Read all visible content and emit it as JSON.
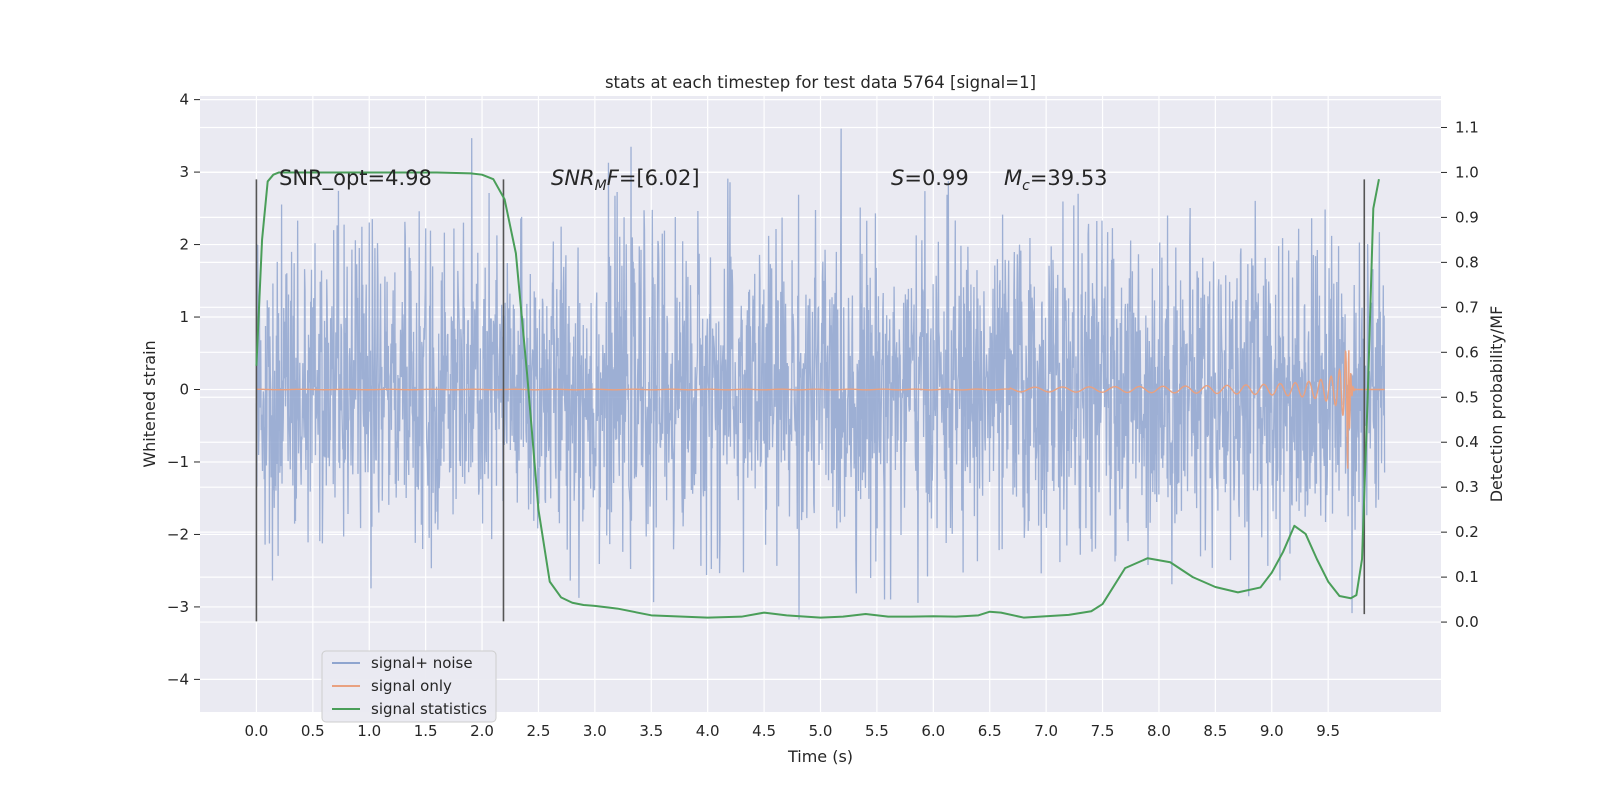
{
  "chart_data": {
    "type": "line",
    "title": "stats at each timestep for test data 5764 [signal=1]",
    "xlabel": "Time (s)",
    "ylabel": "Whitened strain",
    "y2label": "Detection probability/MF",
    "xlim": [
      -0.5,
      10.5
    ],
    "ylim": [
      -4.45,
      4.05
    ],
    "y2lim": [
      -0.2,
      1.17
    ],
    "x_ticks": [
      "0.0",
      "0.5",
      "1.0",
      "1.5",
      "2.0",
      "2.5",
      "3.0",
      "3.5",
      "4.0",
      "4.5",
      "5.0",
      "5.5",
      "6.0",
      "6.5",
      "7.0",
      "7.5",
      "8.0",
      "8.5",
      "9.0",
      "9.5"
    ],
    "y_ticks": [
      "−4",
      "−3",
      "−2",
      "−1",
      "0",
      "1",
      "2",
      "3",
      "4"
    ],
    "y2_ticks": [
      "0.0",
      "0.1",
      "0.2",
      "0.3",
      "0.4",
      "0.5",
      "0.6",
      "0.7",
      "0.8",
      "0.9",
      "1.0",
      "1.1"
    ],
    "grid": true,
    "legend_position": "lower-left",
    "annotations": {
      "snr_opt": "SNR_opt=4.98",
      "snr_mf_main": "SNR",
      "snr_mf_sub": "M",
      "snr_mf_rest": "F=[6.02]",
      "s_italic": "S",
      "s_rest": "=0.99",
      "mc_main": "M",
      "mc_sub": "c",
      "mc_rest": "=39.53"
    },
    "vlines": [
      {
        "x": 0.0,
        "y": [
          -3.2,
          2.9
        ]
      },
      {
        "x": 2.19,
        "y": [
          -3.2,
          2.9
        ]
      },
      {
        "x": 9.82,
        "y": [
          -3.1,
          2.9
        ]
      }
    ],
    "series": [
      {
        "name": "signal+ noise",
        "color": "#8fa5cf",
        "kind": "noise",
        "x_range": [
          0.0,
          10.0
        ],
        "envelope": "gaussian-like whitened noise, typical amplitude ~1.2, peaks ~±3.5"
      },
      {
        "name": "signal only",
        "color": "#e9a180",
        "kind": "chirp",
        "x_range": [
          0.0,
          10.0
        ],
        "merger_time": 9.68,
        "peak_amplitude": 1.25
      },
      {
        "name": "signal statistics",
        "color": "#4a9e59",
        "kind": "curve",
        "axis": "right",
        "x": [
          0.0,
          0.05,
          0.1,
          0.15,
          0.2,
          0.4,
          0.8,
          1.2,
          1.6,
          1.9,
          2.0,
          2.1,
          2.2,
          2.3,
          2.4,
          2.5,
          2.6,
          2.7,
          2.8,
          2.9,
          3.0,
          3.2,
          3.5,
          4.0,
          4.3,
          4.5,
          4.7,
          5.0,
          5.2,
          5.4,
          5.6,
          5.8,
          6.0,
          6.2,
          6.4,
          6.5,
          6.6,
          6.8,
          7.0,
          7.2,
          7.4,
          7.5,
          7.7,
          7.9,
          8.1,
          8.3,
          8.5,
          8.7,
          8.9,
          9.0,
          9.1,
          9.2,
          9.3,
          9.4,
          9.5,
          9.6,
          9.7,
          9.75,
          9.8,
          9.85,
          9.9,
          9.95
        ],
        "y": [
          0.57,
          0.85,
          0.98,
          0.995,
          1.0,
          1.0,
          1.0,
          1.0,
          1.0,
          0.998,
          0.995,
          0.985,
          0.94,
          0.82,
          0.55,
          0.25,
          0.09,
          0.055,
          0.043,
          0.038,
          0.036,
          0.03,
          0.015,
          0.01,
          0.012,
          0.021,
          0.015,
          0.01,
          0.012,
          0.018,
          0.012,
          0.012,
          0.013,
          0.012,
          0.015,
          0.023,
          0.021,
          0.01,
          0.013,
          0.016,
          0.024,
          0.04,
          0.12,
          0.142,
          0.133,
          0.1,
          0.078,
          0.066,
          0.077,
          0.11,
          0.156,
          0.214,
          0.196,
          0.14,
          0.09,
          0.058,
          0.053,
          0.06,
          0.14,
          0.5,
          0.92,
          0.985
        ]
      }
    ]
  }
}
